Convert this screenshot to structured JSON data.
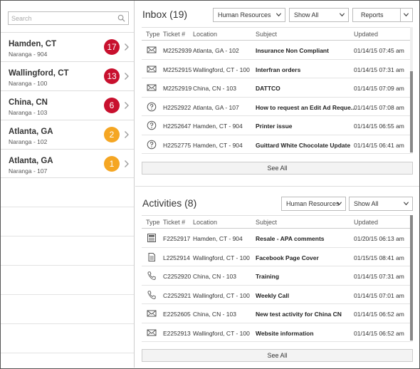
{
  "search": {
    "placeholder": "Search",
    "value": ""
  },
  "locations": [
    {
      "name": "Hamden, CT",
      "sub": "Naranga - 904",
      "count": "17",
      "color": "#c8102e"
    },
    {
      "name": "Wallingford, CT",
      "sub": "Naranga - 100",
      "count": "13",
      "color": "#c8102e"
    },
    {
      "name": "China, CN",
      "sub": "Naranga - 103",
      "count": "6",
      "color": "#c8102e"
    },
    {
      "name": "Atlanta, GA",
      "sub": "Naranga - 102",
      "count": "2",
      "color": "#f5a623"
    },
    {
      "name": "Atlanta, GA",
      "sub": "Naranga - 107",
      "count": "1",
      "color": "#f5a623"
    }
  ],
  "inbox": {
    "title": "Inbox (19)",
    "department": "Human Resources",
    "filter": "Show All",
    "reports": "Reports",
    "columns": {
      "type": "Type",
      "ticket": "Ticket #",
      "location": "Location",
      "subject": "Subject",
      "updated": "Updated"
    },
    "rows": [
      {
        "icon": "envelope-icon",
        "ticket": "M2252939",
        "location": "Atlanta, GA - 102",
        "subject": "Insurance Non Compliant",
        "updated": "01/14/15 07:45 am"
      },
      {
        "icon": "envelope-icon",
        "ticket": "M2252915",
        "location": "Wallingford, CT - 100",
        "subject": "Interfran orders",
        "updated": "01/14/15 07:31 am"
      },
      {
        "icon": "envelope-icon",
        "ticket": "M2252919",
        "location": "China, CN - 103",
        "subject": "DATTCO",
        "updated": "01/14/15 07:09 am"
      },
      {
        "icon": "question-icon",
        "ticket": "H2252922",
        "location": "Atlanta, GA - 107",
        "subject": "How to request an Edit Ad Reque...",
        "updated": "01/14/15 07:08 am"
      },
      {
        "icon": "question-icon",
        "ticket": "H2252647",
        "location": "Hamden, CT - 904",
        "subject": "Printer issue",
        "updated": "01/14/15 06:55 am"
      },
      {
        "icon": "question-icon",
        "ticket": "H2252775",
        "location": "Hamden, CT - 904",
        "subject": "Guittard White Chocolate Update",
        "updated": "01/14/15 06:41 am"
      }
    ],
    "see_all": "See All"
  },
  "activities": {
    "title": "Activities (8)",
    "department": "Human Resources",
    "filter": "Show All",
    "columns": {
      "type": "Type",
      "ticket": "Ticket #",
      "location": "Location",
      "subject": "Subject",
      "updated": "Updated"
    },
    "rows": [
      {
        "icon": "newsletter-icon",
        "ticket": "F2252917",
        "location": "Hamden, CT - 904",
        "subject": "Resale - APA comments",
        "updated": "01/20/15 06:13 am"
      },
      {
        "icon": "document-icon",
        "ticket": "L2252914",
        "location": "Wallingford, CT - 100",
        "subject": "Facebook Page Cover",
        "updated": "01/15/15 08:41 am"
      },
      {
        "icon": "phone-icon",
        "ticket": "C2252920",
        "location": "China, CN - 103",
        "subject": "Training",
        "updated": "01/14/15 07:31 am"
      },
      {
        "icon": "phone-icon",
        "ticket": "C2252921",
        "location": "Wallingford, CT - 100",
        "subject": "Weekly Call",
        "updated": "01/14/15 07:01 am"
      },
      {
        "icon": "envelope-icon",
        "ticket": "E2252605",
        "location": "China, CN - 103",
        "subject": "New test activity for China CN",
        "updated": "01/14/15 06:52 am"
      },
      {
        "icon": "envelope-icon",
        "ticket": "E2252913",
        "location": "Wallingford, CT - 100",
        "subject": "Website information",
        "updated": "01/14/15 06:52 am"
      }
    ],
    "see_all": "See All"
  }
}
